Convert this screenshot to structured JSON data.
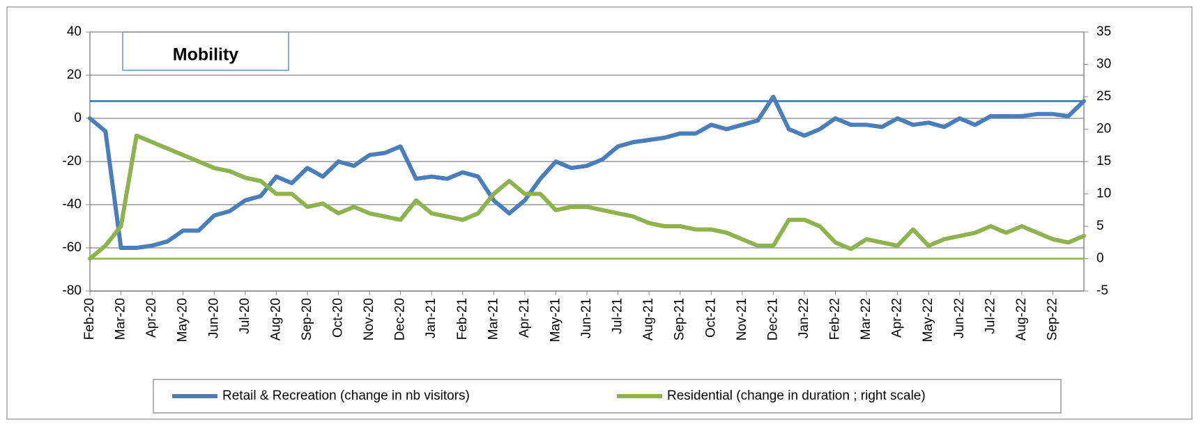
{
  "chart_data": {
    "type": "line",
    "title": "Mobility",
    "categories": [
      "Feb-20",
      null,
      "Mar-20",
      null,
      "Apr-20",
      null,
      "May-20",
      null,
      "Jun-20",
      null,
      "Jul-20",
      null,
      "Aug-20",
      null,
      "Sep-20",
      null,
      "Oct-20",
      null,
      "Nov-20",
      null,
      "Dec-20",
      null,
      "Jan-21",
      null,
      "Feb-21",
      null,
      "Mar-21",
      null,
      "Apr-21",
      null,
      "May-21",
      null,
      "Jun-21",
      null,
      "Jul-21",
      null,
      "Aug-21",
      null,
      "Sep-21",
      null,
      "Oct-21",
      null,
      "Nov-21",
      null,
      "Dec-21",
      null,
      "Jan-22",
      null,
      "Feb-22",
      null,
      "Mar-22",
      null,
      "Apr-22",
      null,
      "May-22",
      null,
      "Jun-22",
      null,
      "Jul-22",
      null,
      "Aug-22",
      null,
      "Sep-22",
      null,
      null
    ],
    "series": [
      {
        "name": "Retail & Recreation (change in nb visitors)",
        "color": "#4a7ebb",
        "axis": "y",
        "values": [
          0,
          -6,
          -60,
          -60,
          -59,
          -57,
          -52,
          -52,
          -45,
          -43,
          -38,
          -36,
          -27,
          -30,
          -23,
          -27,
          -20,
          -22,
          -17,
          -16,
          -13,
          -28,
          -27,
          -28,
          -25,
          -27,
          -38,
          -44,
          -38,
          -28,
          -20,
          -23,
          -22,
          -19,
          -13,
          -11,
          -10,
          -9,
          -7,
          -7,
          -3,
          -5,
          -3,
          -1,
          10,
          -5,
          -8,
          -5,
          0,
          -3,
          -3,
          -4,
          0,
          -3,
          -2,
          -4,
          0,
          -3,
          1,
          1,
          1,
          2,
          2,
          1,
          8
        ]
      },
      {
        "name": "Residential (change in duration ; right scale)",
        "color": "#8db24e",
        "axis": "y2",
        "values": [
          0,
          2,
          5,
          19,
          18,
          17,
          16,
          15,
          14,
          13.5,
          12.5,
          12,
          10,
          10,
          8,
          8.5,
          7,
          8,
          7,
          6.5,
          6,
          9,
          7,
          6.5,
          6,
          7,
          10,
          12,
          10,
          10,
          7.5,
          8,
          8,
          7.5,
          7,
          6.5,
          5.5,
          5,
          5,
          4.5,
          4.5,
          4,
          3,
          2,
          2,
          6,
          6,
          5,
          2.5,
          1.5,
          3,
          2.5,
          2,
          4.5,
          2,
          3,
          3.5,
          4,
          5,
          4,
          5,
          4,
          3,
          2.5,
          3.5
        ]
      }
    ],
    "ref_lines": [
      {
        "value": 8,
        "axis": "y",
        "color": "#2e75b6"
      },
      {
        "value": 0,
        "axis": "y2",
        "color": "#8db24e"
      }
    ],
    "ylim": [
      -80,
      40
    ],
    "yticks": [
      -80,
      -60,
      -40,
      -20,
      0,
      20,
      40
    ],
    "y2lim": [
      -5,
      35
    ],
    "y2ticks": [
      -5,
      0,
      5,
      10,
      15,
      20,
      25,
      30,
      35
    ],
    "grid": true
  }
}
